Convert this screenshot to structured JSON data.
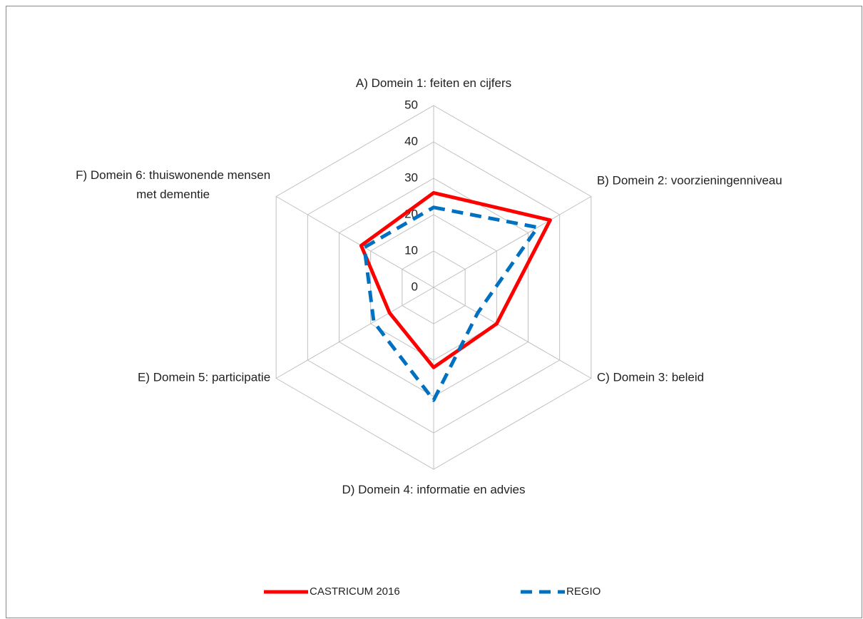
{
  "chart_data": {
    "type": "radar",
    "categories": [
      "A) Domein 1: feiten en cijfers",
      "B) Domein 2: voorzieningenniveau",
      "C) Domein 3: beleid",
      "D) Domein 4: informatie en advies",
      "E) Domein 5: participatie",
      "F) Domein 6: thuiswonende mensen met dementie"
    ],
    "series": [
      {
        "name": "CASTRICUM 2016",
        "color": "#ff0000",
        "dash": false,
        "values": [
          26,
          37,
          20,
          22,
          14,
          23
        ]
      },
      {
        "name": "REGIO",
        "color": "#0070c0",
        "dash": true,
        "values": [
          22,
          33,
          14,
          31,
          19,
          22
        ]
      }
    ],
    "ylim": [
      0,
      50
    ],
    "yticks": [
      0,
      10,
      20,
      30,
      40,
      50
    ],
    "grid": true,
    "legend": "bottom"
  }
}
